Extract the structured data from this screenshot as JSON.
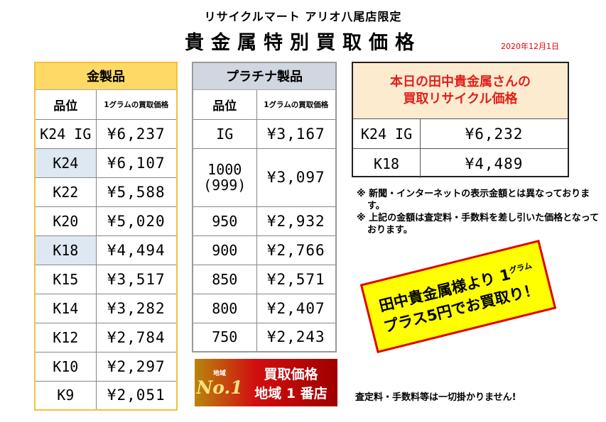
{
  "header": {
    "store": "リサイクルマート アリオ八尾店限定",
    "title": "貴金属特別買取価格",
    "date": "2020年12月1日"
  },
  "gold_table": {
    "title": "金製品",
    "col_grade": "品位",
    "col_price": "1グラムの買取価格",
    "rows": [
      {
        "grade": "K24 IG",
        "price": "¥6,237"
      },
      {
        "grade": "K24",
        "price": "¥6,107"
      },
      {
        "grade": "K22",
        "price": "¥5,588"
      },
      {
        "grade": "K20",
        "price": "¥5,020"
      },
      {
        "grade": "K18",
        "price": "¥4,494"
      },
      {
        "grade": "K15",
        "price": "¥3,517"
      },
      {
        "grade": "K14",
        "price": "¥3,282"
      },
      {
        "grade": "K12",
        "price": "¥2,784"
      },
      {
        "grade": "K10",
        "price": "¥2,297"
      },
      {
        "grade": "K9",
        "price": "¥2,051"
      }
    ]
  },
  "platinum_table": {
    "title": "プラチナ製品",
    "col_grade": "品位",
    "col_price": "1グラムの買取価格",
    "rows": [
      {
        "grade": "IG",
        "price": "¥3,167"
      },
      {
        "grade_line1": "1000",
        "grade_line2": "(999)",
        "price": "¥3,097"
      },
      {
        "grade": "950",
        "price": "¥2,932"
      },
      {
        "grade": "900",
        "price": "¥2,766"
      },
      {
        "grade": "850",
        "price": "¥2,571"
      },
      {
        "grade": "800",
        "price": "¥2,407"
      },
      {
        "grade": "750",
        "price": "¥2,243"
      }
    ]
  },
  "tanaka_box": {
    "title_line1": "本日の田中貴金属さんの",
    "title_line2": "買取リサイクル価格",
    "rows": [
      {
        "grade": "K24 IG",
        "price": "¥6,232"
      },
      {
        "grade": "K18",
        "price": "¥4,489"
      }
    ]
  },
  "notes": [
    "※ 新聞・インターネットの表示金額とは異なっております。",
    "※ 上記の金額は査定料・手数料を差し引いた価格となっております。"
  ],
  "promo": {
    "line1": "田中貴金属様より 1",
    "gram": "グラム",
    "line2": "プラス5円でお買取り！"
  },
  "badge": {
    "region": "地域",
    "no1": "No.1",
    "line1": "買取価格",
    "line2": "地域 1 番店"
  },
  "footer": "査定料・手数料等は一切掛かりません!",
  "colors": {
    "gold_header": "#ffd966",
    "platinum_header": "#d0d7e0",
    "highlight_cell": "#dde8f2",
    "tanaka_header_bg": "#fdebd0",
    "accent_red": "#e00000",
    "promo_yellow": "#ffff00"
  }
}
